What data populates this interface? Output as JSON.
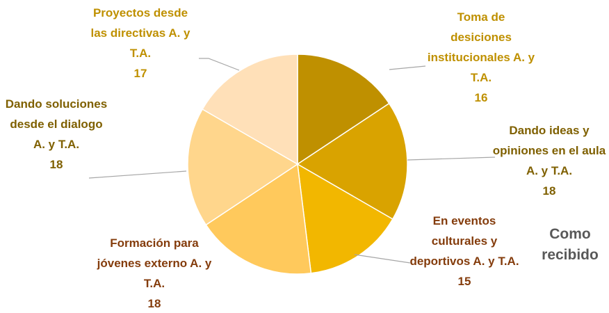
{
  "chart_data": {
    "type": "pie",
    "categories": [
      "Toma de desiciones institucionales A. y T.A.",
      "Dando ideas y opiniones en el aula A. y T.A.",
      "En eventos culturales y deportivos A. y T.A.",
      "Formación para jóvenes externo A. y T.A.",
      "Dando soluciones desde el dialogo A. y T.A.",
      "Proyectos desde las directivas A. y T.A."
    ],
    "values": [
      16,
      18,
      15,
      18,
      18,
      17
    ],
    "colors": [
      "#bf9000",
      "#d9a300",
      "#f2b700",
      "#ffc95c",
      "#ffd68c",
      "#ffe0b8"
    ],
    "label_colors": [
      "#bf9000",
      "#7f6000",
      "#843c0c",
      "#843c0c",
      "#7f6000",
      "#bf9000"
    ],
    "legend_label": "Como recibido"
  }
}
